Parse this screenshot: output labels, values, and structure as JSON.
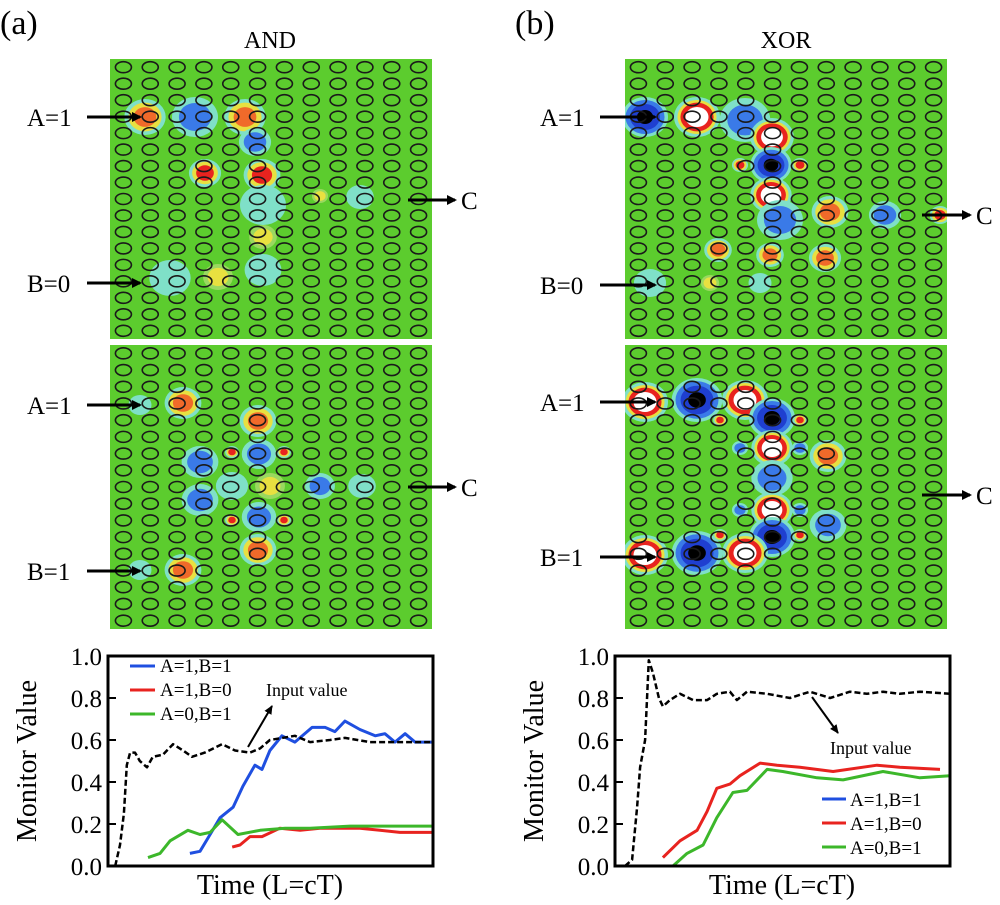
{
  "panels": [
    {
      "letter": "(a)",
      "gate": "AND",
      "maps": [
        {
          "inputs": [
            "A=1",
            "B=0"
          ],
          "output": "C"
        },
        {
          "inputs": [
            "A=1",
            "B=1"
          ],
          "output": "C"
        }
      ]
    },
    {
      "letter": "(b)",
      "gate": "XOR",
      "maps": [
        {
          "inputs": [
            "A=1",
            "B=0"
          ],
          "output": "C"
        },
        {
          "inputs": [
            "A=1",
            "B=1"
          ],
          "output": "C"
        }
      ]
    }
  ],
  "colors": {
    "background_field": "#5ccc2e",
    "rod_outline": "#1a1a1a",
    "blue": "#1f4fe0",
    "red": "#e8231f",
    "green": "#3cb72a",
    "black": "#000000"
  },
  "chart_data": [
    {
      "type": "line",
      "xlabel": "Time (L=cT)",
      "ylabel": "Monitor Value",
      "ylim": [
        0,
        1.0
      ],
      "xlim": [
        0,
        100
      ],
      "yticks": [
        "0.0",
        "0.2",
        "0.4",
        "0.6",
        "0.8",
        "1.0"
      ],
      "legend_placement": "top-left",
      "annotation": "Input value",
      "series": [
        {
          "name": "A=1,B=1",
          "color": "#1f4fe0",
          "style": "solid",
          "x": [
            25.2,
            28.3,
            31.4,
            34.5,
            38.5,
            41.5,
            45.2,
            47.4,
            49.8,
            53.5,
            57.5,
            62.8,
            66.8,
            69.8,
            72.9,
            77.5,
            82.2,
            85.2,
            88.3,
            91.4,
            94.5,
            100
          ],
          "y": [
            0.06,
            0.07,
            0.15,
            0.23,
            0.28,
            0.38,
            0.48,
            0.46,
            0.55,
            0.62,
            0.59,
            0.66,
            0.66,
            0.64,
            0.69,
            0.65,
            0.62,
            0.63,
            0.59,
            0.63,
            0.59,
            0.59
          ]
        },
        {
          "name": "A=1,B=0",
          "color": "#e8231f",
          "style": "solid",
          "x": [
            38.2,
            40.6,
            43.7,
            47.4,
            52.9,
            59.1,
            65.2,
            71.4,
            77.5,
            83.7,
            89.8,
            100
          ],
          "y": [
            0.09,
            0.1,
            0.14,
            0.14,
            0.18,
            0.17,
            0.18,
            0.18,
            0.18,
            0.17,
            0.16,
            0.16
          ]
        },
        {
          "name": "A=0,B=1",
          "color": "#3cb72a",
          "style": "solid",
          "x": [
            12.3,
            16,
            19.1,
            24.6,
            28.3,
            31.4,
            35.1,
            40,
            46.8,
            54.5,
            62.2,
            74.5,
            86.8,
            100
          ],
          "y": [
            0.04,
            0.06,
            0.12,
            0.17,
            0.15,
            0.16,
            0.22,
            0.15,
            0.17,
            0.18,
            0.18,
            0.19,
            0.19,
            0.19
          ]
        },
        {
          "name": "Input value",
          "color": "#000000",
          "style": "dashed",
          "x": [
            2.2,
            3.7,
            4.9,
            5.8,
            6.8,
            8.3,
            9.8,
            12,
            13.8,
            16.9,
            20,
            23.1,
            25.8,
            29.8,
            35.1,
            39.1,
            43.7,
            46.8,
            49.8,
            57.5,
            62.2,
            68.3,
            72.9,
            80.6,
            88.3,
            100
          ],
          "y": [
            0,
            0.1,
            0.25,
            0.48,
            0.54,
            0.54,
            0.5,
            0.47,
            0.52,
            0.53,
            0.58,
            0.55,
            0.52,
            0.54,
            0.58,
            0.55,
            0.54,
            0.56,
            0.6,
            0.62,
            0.59,
            0.6,
            0.61,
            0.59,
            0.59,
            0.59
          ]
        }
      ]
    },
    {
      "type": "line",
      "xlabel": "Time (L=cT)",
      "ylabel": "Monitor Value",
      "ylim": [
        0,
        1.0
      ],
      "xlim": [
        0,
        100
      ],
      "yticks": [
        "0.0",
        "0.2",
        "0.4",
        "0.6",
        "0.8",
        "1.0"
      ],
      "legend_placement": "bottom-right",
      "annotation": "Input value",
      "series": [
        {
          "name": "A=1,B=1",
          "color": "#1f4fe0",
          "style": "solid",
          "x": [
            17.3,
            97.6
          ],
          "y": [
            0.0,
            0.0
          ]
        },
        {
          "name": "A=1,B=0",
          "color": "#e8231f",
          "style": "solid",
          "x": [
            14.3,
            19.4,
            24.5,
            27.5,
            30.4,
            34.3,
            37.3,
            43.3,
            48.4,
            55.2,
            65.1,
            78.2,
            85,
            97
          ],
          "y": [
            0.04,
            0.12,
            0.17,
            0.26,
            0.37,
            0.39,
            0.43,
            0.49,
            0.48,
            0.47,
            0.45,
            0.48,
            0.47,
            0.46
          ]
        },
        {
          "name": "A=0,B=1",
          "color": "#3cb72a",
          "style": "solid",
          "x": [
            17.3,
            21.5,
            26.3,
            30.4,
            35.2,
            39.4,
            45.4,
            50.1,
            60.3,
            68.1,
            80,
            91,
            100
          ],
          "y": [
            0,
            0.06,
            0.1,
            0.23,
            0.35,
            0.36,
            0.46,
            0.45,
            0.42,
            0.41,
            0.45,
            0.42,
            0.43
          ]
        },
        {
          "name": "Input value",
          "color": "#000000",
          "style": "dashed",
          "x": [
            3,
            5.1,
            6.6,
            7.5,
            9,
            10.1,
            11.3,
            13.1,
            14.3,
            16.4,
            19.4,
            23.3,
            27.5,
            30.4,
            34.3,
            36.4,
            39.4,
            45.4,
            52.2,
            58.2,
            64.2,
            70.1,
            75.2,
            80,
            85,
            91,
            100
          ],
          "y": [
            0,
            0.03,
            0.28,
            0.47,
            0.6,
            0.98,
            0.92,
            0.8,
            0.76,
            0.79,
            0.82,
            0.79,
            0.79,
            0.82,
            0.83,
            0.79,
            0.83,
            0.82,
            0.8,
            0.83,
            0.8,
            0.83,
            0.82,
            0.83,
            0.82,
            0.83,
            0.82
          ]
        }
      ]
    }
  ]
}
